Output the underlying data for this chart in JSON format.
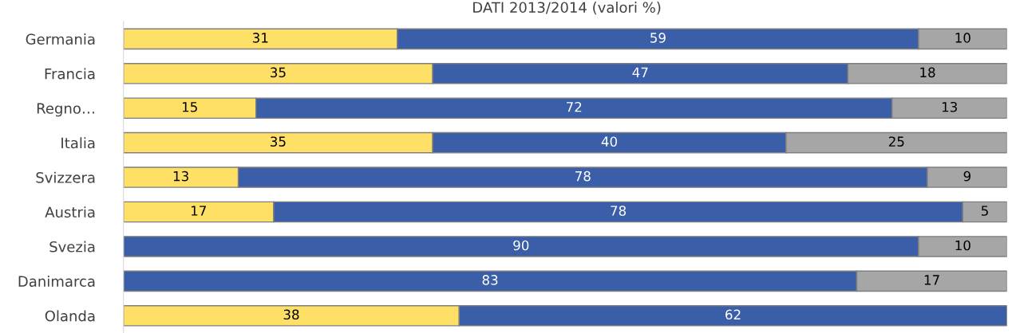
{
  "chart_data": {
    "type": "bar",
    "orientation": "horizontal",
    "stacked": true,
    "title": "DATI 2013/2014 (valori %)",
    "data_labels": true,
    "grid": false,
    "legend": false,
    "categories": [
      "Germania",
      "Francia",
      "Regno…",
      "Italia",
      "Svizzera",
      "Austria",
      "Svezia",
      "Danimarca",
      "Olanda"
    ],
    "series": [
      {
        "color": "#ffe066",
        "values": [
          31,
          35,
          15,
          35,
          13,
          17,
          null,
          null,
          38
        ]
      },
      {
        "color": "#3a5ea8",
        "values": [
          59,
          47,
          72,
          40,
          78,
          78,
          90,
          83,
          62
        ]
      },
      {
        "color": "#a6a6a6",
        "values": [
          10,
          18,
          13,
          25,
          9,
          5,
          10,
          17,
          null
        ]
      }
    ]
  }
}
